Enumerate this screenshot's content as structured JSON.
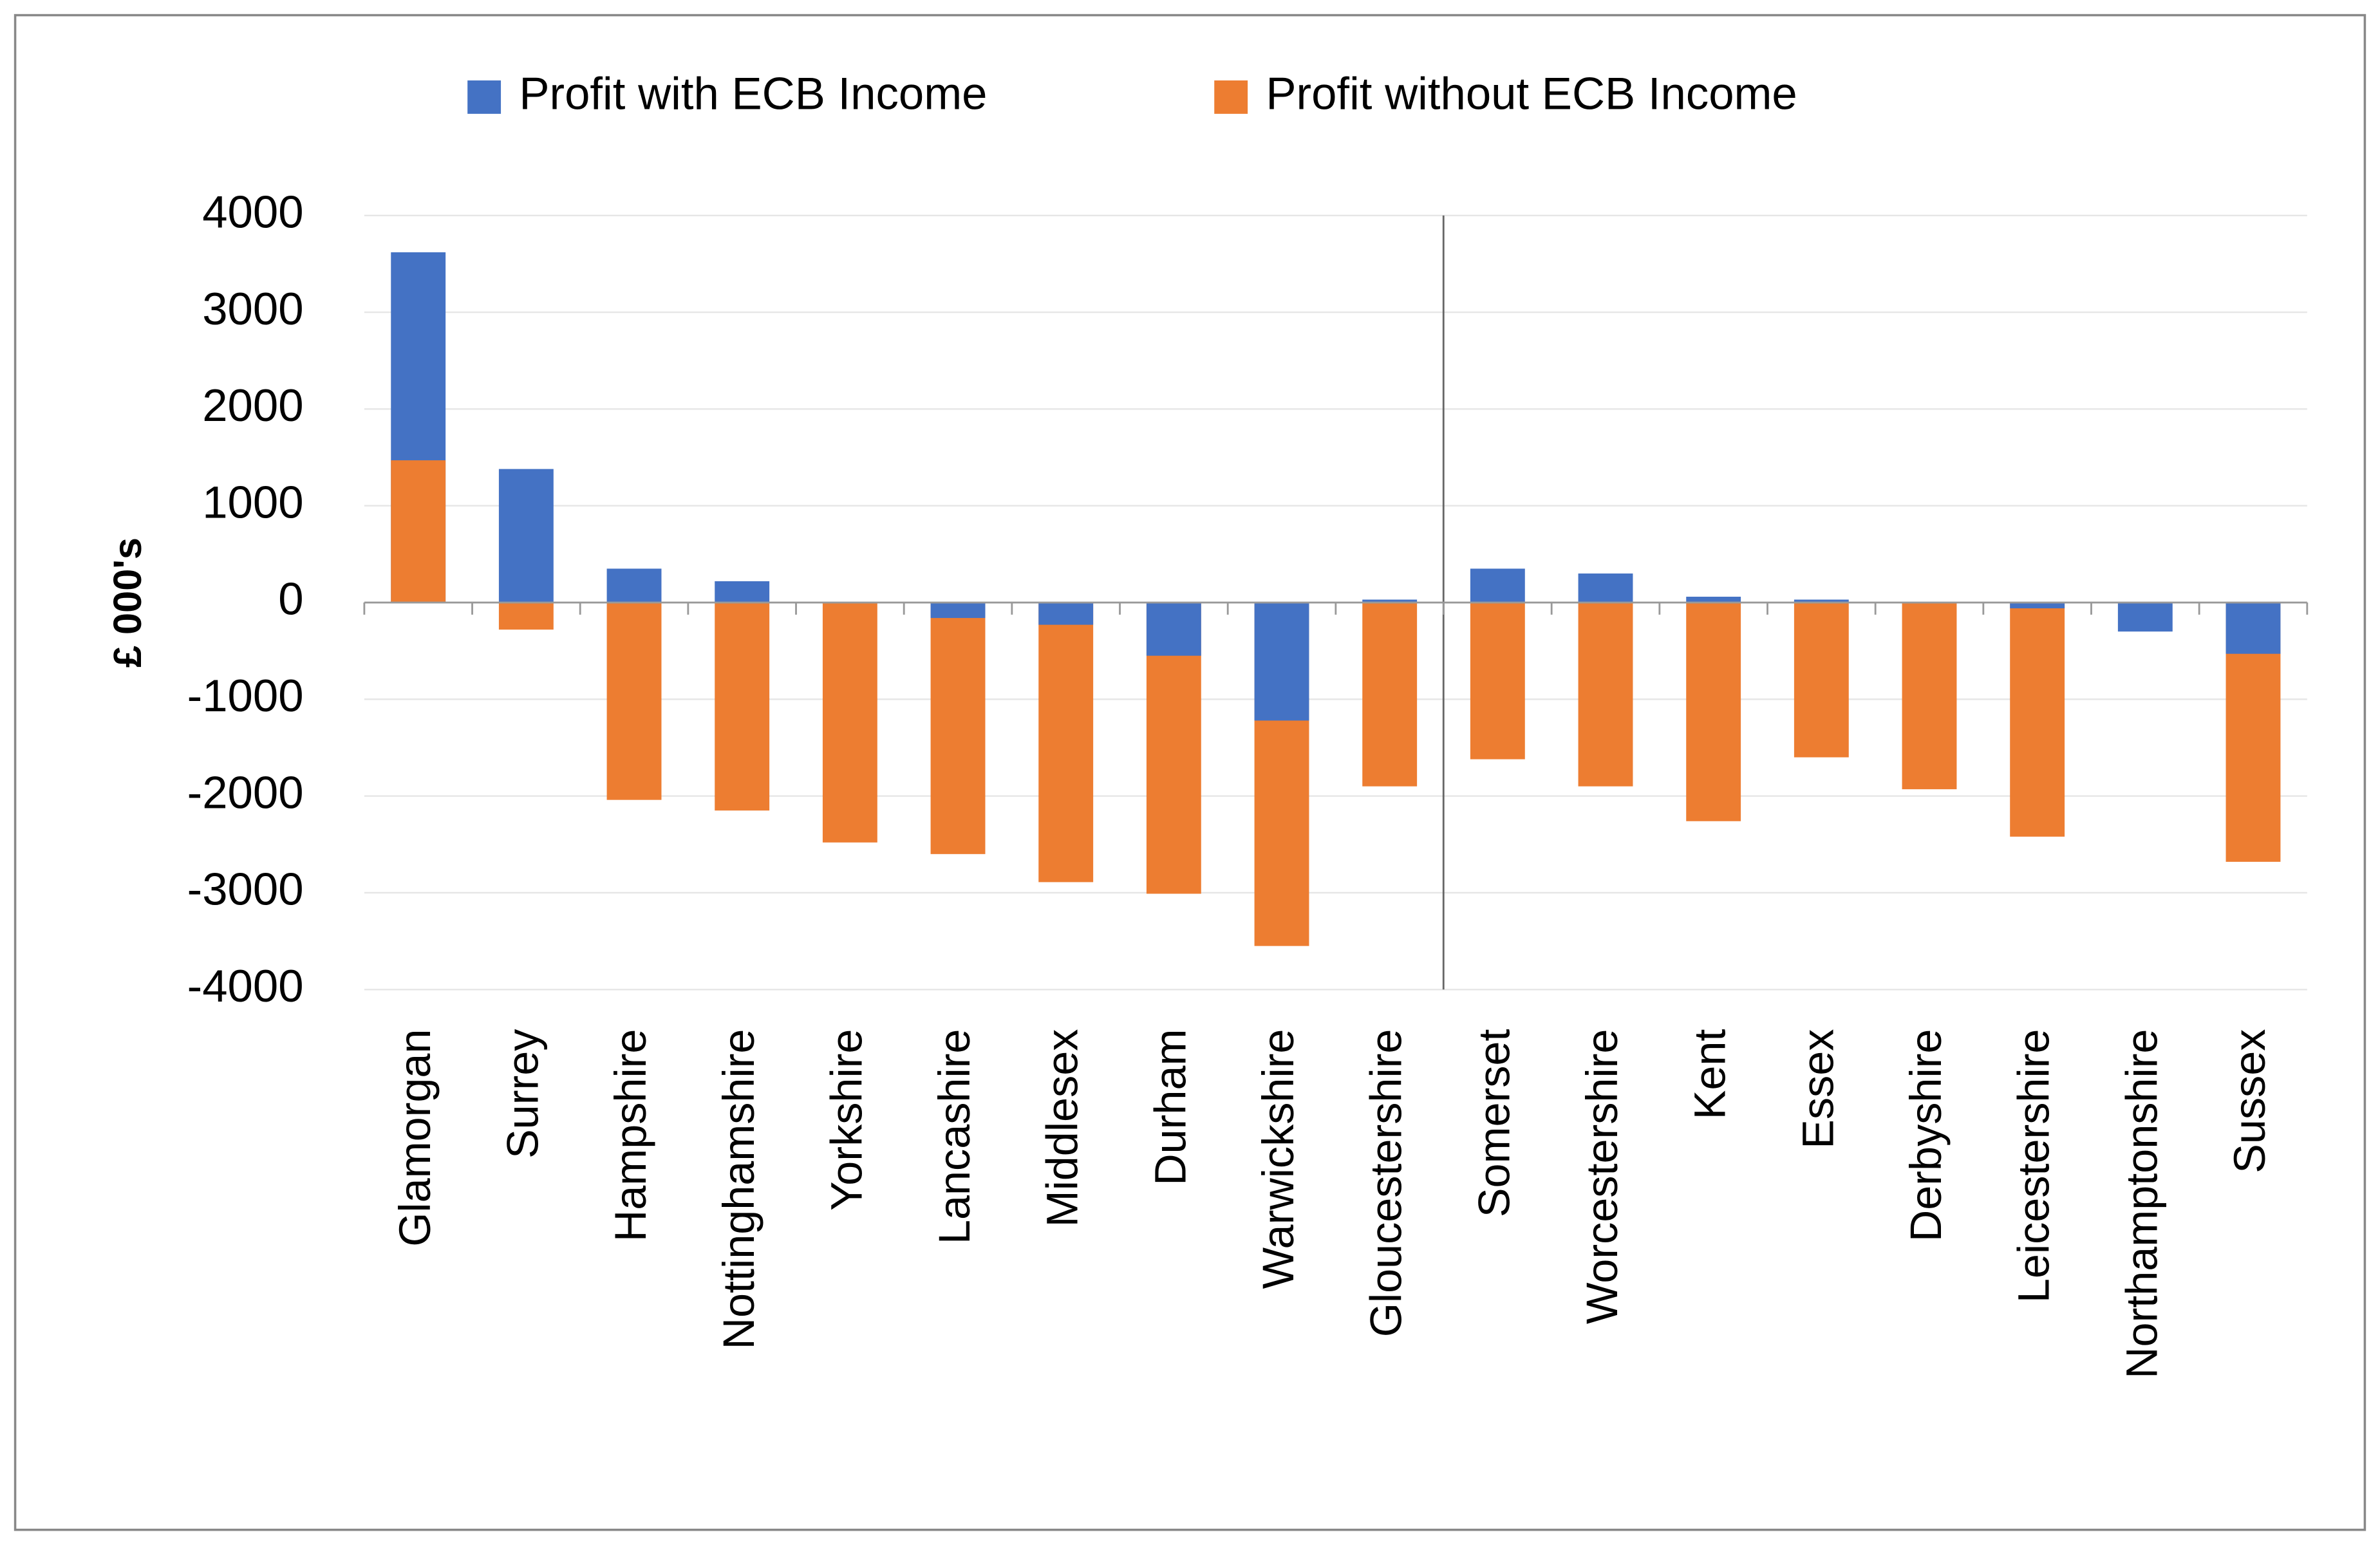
{
  "chart_data": {
    "type": "bar",
    "y_label": "£ 000's",
    "categories": [
      "Glamorgan",
      "Surrey",
      "Hampshire",
      "Nottinghamshire",
      "Yorkshire",
      "Lancashire",
      "Middlesex",
      "Durham",
      "Warwickshire",
      "Gloucestershire",
      "Somerset",
      "Worcestershire",
      "Kent",
      "Essex",
      "Derbyshire",
      "Leicestershire",
      "Northamptonshire",
      "Sussex"
    ],
    "series": [
      {
        "name": "Profit with ECB Income",
        "color": "#4472c4",
        "values": [
          3620,
          1380,
          350,
          220,
          0,
          -160,
          -230,
          -550,
          -1220,
          30,
          350,
          300,
          60,
          30,
          0,
          -60,
          -300,
          -530
        ]
      },
      {
        "name": "Profit without ECB Income",
        "color": "#ed7d31",
        "values": [
          1470,
          -280,
          -2040,
          -2150,
          -2480,
          -2600,
          -2890,
          -3010,
          -3550,
          -1900,
          -1620,
          -1900,
          -2260,
          -1600,
          -1930,
          -2420,
          0,
          -2680
        ]
      }
    ],
    "ylim": [
      -4000,
      4000
    ],
    "yticks": [
      -4000,
      -3000,
      -2000,
      -1000,
      0,
      1000,
      2000,
      3000,
      4000
    ],
    "grid": true,
    "legend": "top"
  }
}
